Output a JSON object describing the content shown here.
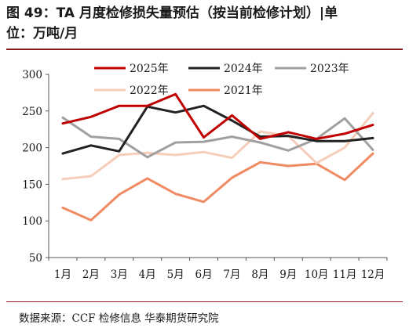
{
  "header": {
    "title_line1": "图 49：TA 月度检修损失量预估（按当前检修计划）|单",
    "title_line2": "位：万吨/月"
  },
  "source": "数据来源：CCF 检修信息  华泰期货研究院",
  "chart_data": {
    "type": "line",
    "categories": [
      "1月",
      "2月",
      "3月",
      "4月",
      "5月",
      "6月",
      "7月",
      "8月",
      "9月",
      "10月",
      "11月",
      "12月"
    ],
    "ylim": [
      50,
      300
    ],
    "yticks": [
      "300",
      "250",
      "200",
      "150",
      "100",
      "50"
    ],
    "ytick_values": [
      300,
      250,
      200,
      150,
      100,
      50
    ],
    "grid": false,
    "legend_position": "top",
    "series": [
      {
        "name": "2025年",
        "color": "#c00000",
        "values": [
          233,
          242,
          257,
          257,
          273,
          214,
          244,
          212,
          221,
          212,
          219,
          231
        ]
      },
      {
        "name": "2024年",
        "color": "#222222",
        "values": [
          192,
          203,
          195,
          256,
          248,
          257,
          237,
          215,
          216,
          209,
          209,
          213
        ]
      },
      {
        "name": "2023年",
        "color": "#a0a0a0",
        "values": [
          241,
          215,
          212,
          187,
          207,
          208,
          215,
          207,
          196,
          212,
          240,
          197
        ]
      },
      {
        "name": "2022年",
        "color": "#f6cdb8",
        "values": [
          157,
          161,
          190,
          193,
          190,
          194,
          186,
          222,
          216,
          179,
          200,
          247
        ]
      },
      {
        "name": "2021年",
        "color": "#ef8a62",
        "values": [
          118,
          101,
          136,
          158,
          137,
          126,
          159,
          180,
          175,
          178,
          156,
          192
        ]
      }
    ]
  }
}
